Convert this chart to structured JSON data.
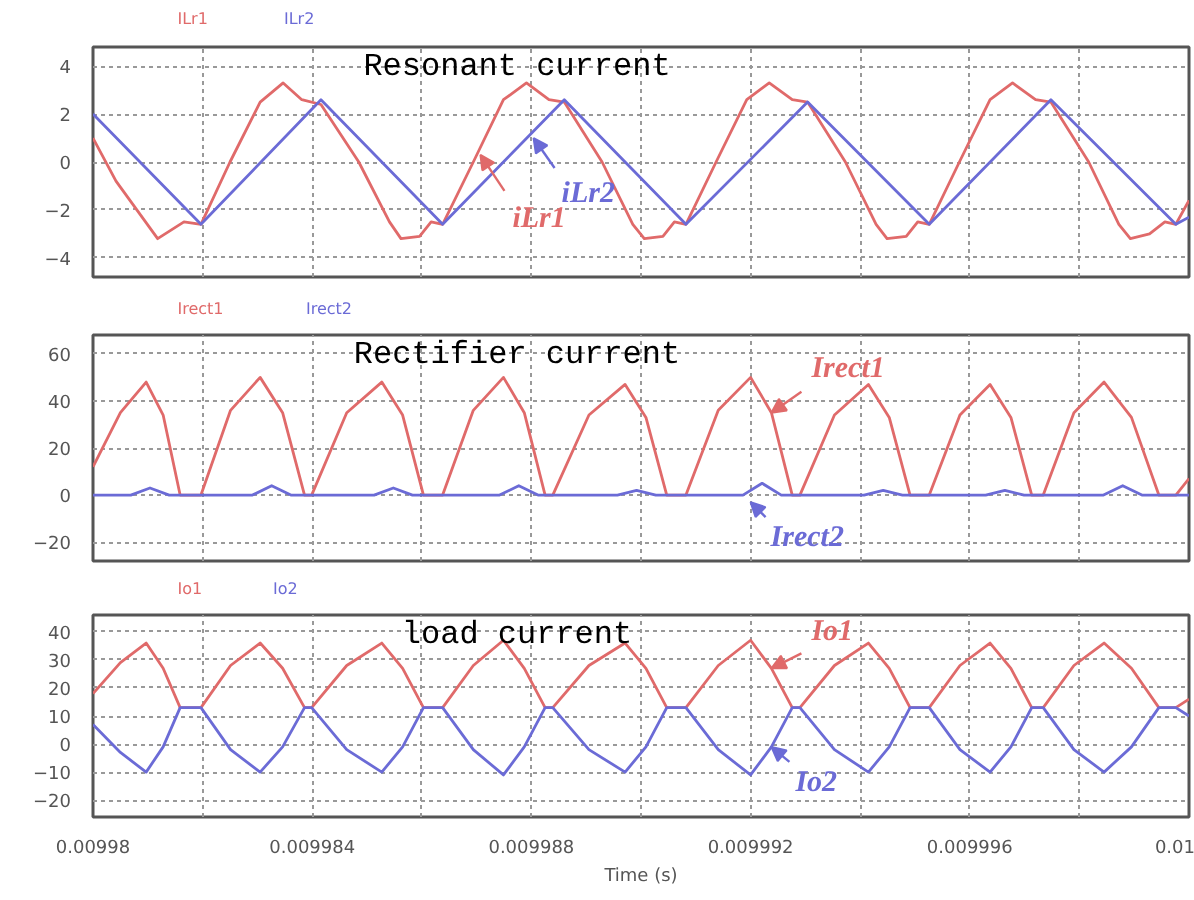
{
  "chart_data": [
    {
      "type": "line",
      "title": "Resonant current",
      "legend": "top left",
      "grid": true,
      "tick_labels": "y",
      "xlim": [
        0.00998,
        0.01
      ],
      "xticks": [
        0.00998,
        {
          "value": 0.009982,
          "label": null
        },
        0.009984,
        {
          "value": 0.009986,
          "label": null
        },
        0.009988,
        {
          "value": 0.00999,
          "label": null
        },
        0.009992,
        {
          "value": 0.009994,
          "label": null
        },
        0.009996,
        {
          "value": 0.009998,
          "label": null
        },
        0.01
      ],
      "ylim": [
        -4.8,
        4.8
      ],
      "yticks": [
        -4,
        -2,
        0,
        2,
        4
      ],
      "series": [
        {
          "name": "ILr1",
          "color": "#e06a6a",
          "x": [
            0.00998,
            0.00998042,
            0.00998118,
            0.00998166,
            0.00998197,
            0.0099825,
            0.00998305,
            0.00998347,
            0.00998381,
            0.00998416,
            0.00998485,
            0.00998541,
            0.00998562,
            0.00998596,
            0.00998617,
            0.00998638,
            0.00998694,
            0.00998749,
            0.00998791,
            0.00998832,
            0.0099886,
            0.00998929,
            0.00998985,
            0.00999006,
            0.0099904,
            0.00999061,
            0.00999082,
            0.00999137,
            0.00999193,
            0.00999234,
            0.00999276,
            0.00999304,
            0.00999373,
            0.00999429,
            0.00999449,
            0.00999484,
            0.00999505,
            0.00999526,
            0.00999581,
            0.00999637,
            0.00999678,
            0.0099972,
            0.00999748,
            0.00999817,
            0.00999872,
            0.00999893,
            0.00999928,
            0.00999956,
            0.00999976,
            0.01
          ],
          "values": [
            1.0,
            -0.8,
            -3.2,
            -2.5,
            -2.6,
            0,
            2.5,
            3.3,
            2.6,
            2.4,
            0,
            -2.5,
            -3.2,
            -3.1,
            -2.5,
            -2.6,
            0,
            2.6,
            3.3,
            2.6,
            2.5,
            0,
            -2.6,
            -3.2,
            -3.1,
            -2.5,
            -2.6,
            0,
            2.6,
            3.3,
            2.6,
            2.5,
            0,
            -2.6,
            -3.2,
            -3.1,
            -2.5,
            -2.6,
            0,
            2.6,
            3.3,
            2.6,
            2.5,
            0,
            -2.6,
            -3.2,
            -3.0,
            -2.5,
            -2.6,
            -1.6
          ]
        },
        {
          "name": "ILr2",
          "color": "#6b6bd6",
          "x": [
            0.00998,
            0.00998197,
            0.00998416,
            0.00998638,
            0.0099886,
            0.00999082,
            0.00999304,
            0.00999526,
            0.00999748,
            0.00999976,
            0.01
          ],
          "values": [
            2.0,
            -2.6,
            2.6,
            -2.6,
            2.6,
            -2.6,
            2.5,
            -2.6,
            2.6,
            -2.6,
            -2.3
          ]
        }
      ],
      "annotations": [
        {
          "text": "iLr1",
          "x": 0.00998707,
          "y": 0.3
        },
        {
          "text": "iLr2",
          "x": 0.00998804,
          "y": 1.0
        }
      ]
    },
    {
      "type": "line",
      "title": "Rectifier current",
      "legend": "top left",
      "grid": true,
      "tick_labels": "y",
      "xlim": [
        0.00998,
        0.01
      ],
      "xticks": [
        0.00998,
        {
          "value": 0.009982,
          "label": null
        },
        0.009984,
        {
          "value": 0.009986,
          "label": null
        },
        0.009988,
        {
          "value": 0.00999,
          "label": null
        },
        0.009992,
        {
          "value": 0.009994,
          "label": null
        },
        0.009996,
        {
          "value": 0.009998,
          "label": null
        },
        0.01
      ],
      "ylim": [
        -28,
        68
      ],
      "yticks": [
        -20,
        0,
        20,
        40,
        60
      ],
      "series": [
        {
          "name": "Irect1",
          "color": "#e06a6a",
          "x": [
            0.00998,
            0.0099805,
            0.00998097,
            0.00998128,
            0.00998159,
            0.00998197,
            0.00998251,
            0.00998305,
            0.00998346,
            0.00998386,
            0.00998399,
            0.00998463,
            0.00998527,
            0.00998565,
            0.00998603,
            0.00998638,
            0.00998694,
            0.00998749,
            0.00998787,
            0.00998825,
            0.00998839,
            0.00998905,
            0.00998971,
            0.00999009,
            0.00999047,
            0.00999082,
            0.00999141,
            0.009992,
            0.00999238,
            0.00999276,
            0.0099929,
            0.00999353,
            0.00999415,
            0.00999453,
            0.00999491,
            0.00999526,
            0.00999582,
            0.00999637,
            0.00999675,
            0.00999713,
            0.00999734,
            0.0099979,
            0.00999845,
            0.00999895,
            0.00999945,
            0.00999976,
            0.01
          ],
          "values": [
            12,
            35,
            48,
            34,
            0,
            0,
            36,
            50,
            35,
            0,
            0,
            35,
            48,
            34,
            0,
            0,
            36,
            50,
            35,
            0,
            0,
            34,
            47,
            33,
            0,
            0,
            36,
            50,
            35,
            0,
            0,
            34,
            47,
            33,
            0,
            0,
            34,
            47,
            33,
            0,
            0,
            35,
            48,
            33,
            0,
            0,
            7
          ]
        },
        {
          "name": "Irect2",
          "color": "#6b6bd6",
          "x": [
            0.00998,
            0.00998069,
            0.00998104,
            0.00998139,
            0.00998291,
            0.00998326,
            0.00998361,
            0.00998513,
            0.00998548,
            0.00998583,
            0.00998742,
            0.00998777,
            0.00998812,
            0.00998957,
            0.00998992,
            0.00999027,
            0.00999186,
            0.00999221,
            0.00999256,
            0.00999407,
            0.00999442,
            0.00999477,
            0.00999629,
            0.00999664,
            0.00999699,
            0.00999844,
            0.00999879,
            0.00999914,
            0.01
          ],
          "values": [
            0,
            0,
            3,
            0,
            0,
            4,
            0,
            0,
            3,
            0,
            0,
            4,
            0,
            0,
            2,
            0,
            0,
            5,
            0,
            0,
            2,
            0,
            0,
            2,
            0,
            0,
            4,
            0,
            0
          ]
        }
      ],
      "annotations": [
        {
          "text": "Irect1",
          "x": 0.00999238,
          "y": 35
        },
        {
          "text": "Irect2",
          "x": 0.009992,
          "y": -3
        }
      ]
    },
    {
      "type": "line",
      "title": "load current",
      "xlabel": "Time (s)",
      "legend": "top left",
      "grid": true,
      "xlim": [
        0.00998,
        0.01
      ],
      "xticks": [
        0.00998,
        {
          "value": 0.009982,
          "label": null
        },
        0.009984,
        {
          "value": 0.009986,
          "label": null
        },
        0.009988,
        {
          "value": 0.00999,
          "label": null
        },
        0.009992,
        {
          "value": 0.009994,
          "label": null
        },
        0.009996,
        {
          "value": 0.009998,
          "label": null
        },
        0.01
      ],
      "ylim": [
        -26,
        46
      ],
      "yticks": [
        -20,
        -10,
        0,
        10,
        20,
        30,
        40
      ],
      "x": [
        0.00998,
        0.0099805,
        0.00998097,
        0.00998128,
        0.00998159,
        0.00998197,
        0.00998251,
        0.00998305,
        0.00998346,
        0.00998386,
        0.00998399,
        0.00998463,
        0.00998527,
        0.00998565,
        0.00998603,
        0.00998638,
        0.00998694,
        0.00998749,
        0.00998787,
        0.00998825,
        0.00998839,
        0.00998905,
        0.00998971,
        0.00999009,
        0.00999047,
        0.00999082,
        0.00999141,
        0.009992,
        0.00999238,
        0.00999276,
        0.0099929,
        0.00999353,
        0.00999415,
        0.00999453,
        0.00999491,
        0.00999526,
        0.00999582,
        0.00999637,
        0.00999675,
        0.00999713,
        0.00999734,
        0.0099979,
        0.00999845,
        0.00999895,
        0.00999945,
        0.00999976,
        0.01
      ],
      "series": [
        {
          "name": "Io1",
          "color": "#e06a6a",
          "values": [
            18,
            29,
            36,
            27,
            13,
            13,
            28,
            36,
            27,
            13,
            13,
            28,
            36,
            27,
            13,
            13,
            28,
            37,
            27,
            13,
            13,
            28,
            36,
            27,
            13,
            13,
            28,
            37,
            27,
            13,
            13,
            28,
            36,
            27,
            13,
            13,
            28,
            36,
            27,
            13,
            13,
            28,
            36,
            27,
            13,
            13,
            16
          ]
        },
        {
          "name": "Io2",
          "color": "#6b6bd6",
          "values": [
            7,
            -3,
            -10,
            -1,
            13,
            13,
            -2,
            -10,
            -1,
            13,
            13,
            -2,
            -10,
            -1,
            13,
            13,
            -2,
            -11,
            -1,
            13,
            13,
            -2,
            -10,
            -1,
            13,
            13,
            -2,
            -11,
            -1,
            13,
            13,
            -2,
            -10,
            -1,
            13,
            13,
            -2,
            -10,
            -1,
            13,
            13,
            -2,
            -10,
            -1,
            13,
            13,
            10
          ]
        }
      ],
      "annotations": [
        {
          "text": "Io1",
          "x": 0.00999238,
          "y": 27
        },
        {
          "text": "Io2",
          "x": 0.00999238,
          "y": -1
        }
      ]
    }
  ]
}
